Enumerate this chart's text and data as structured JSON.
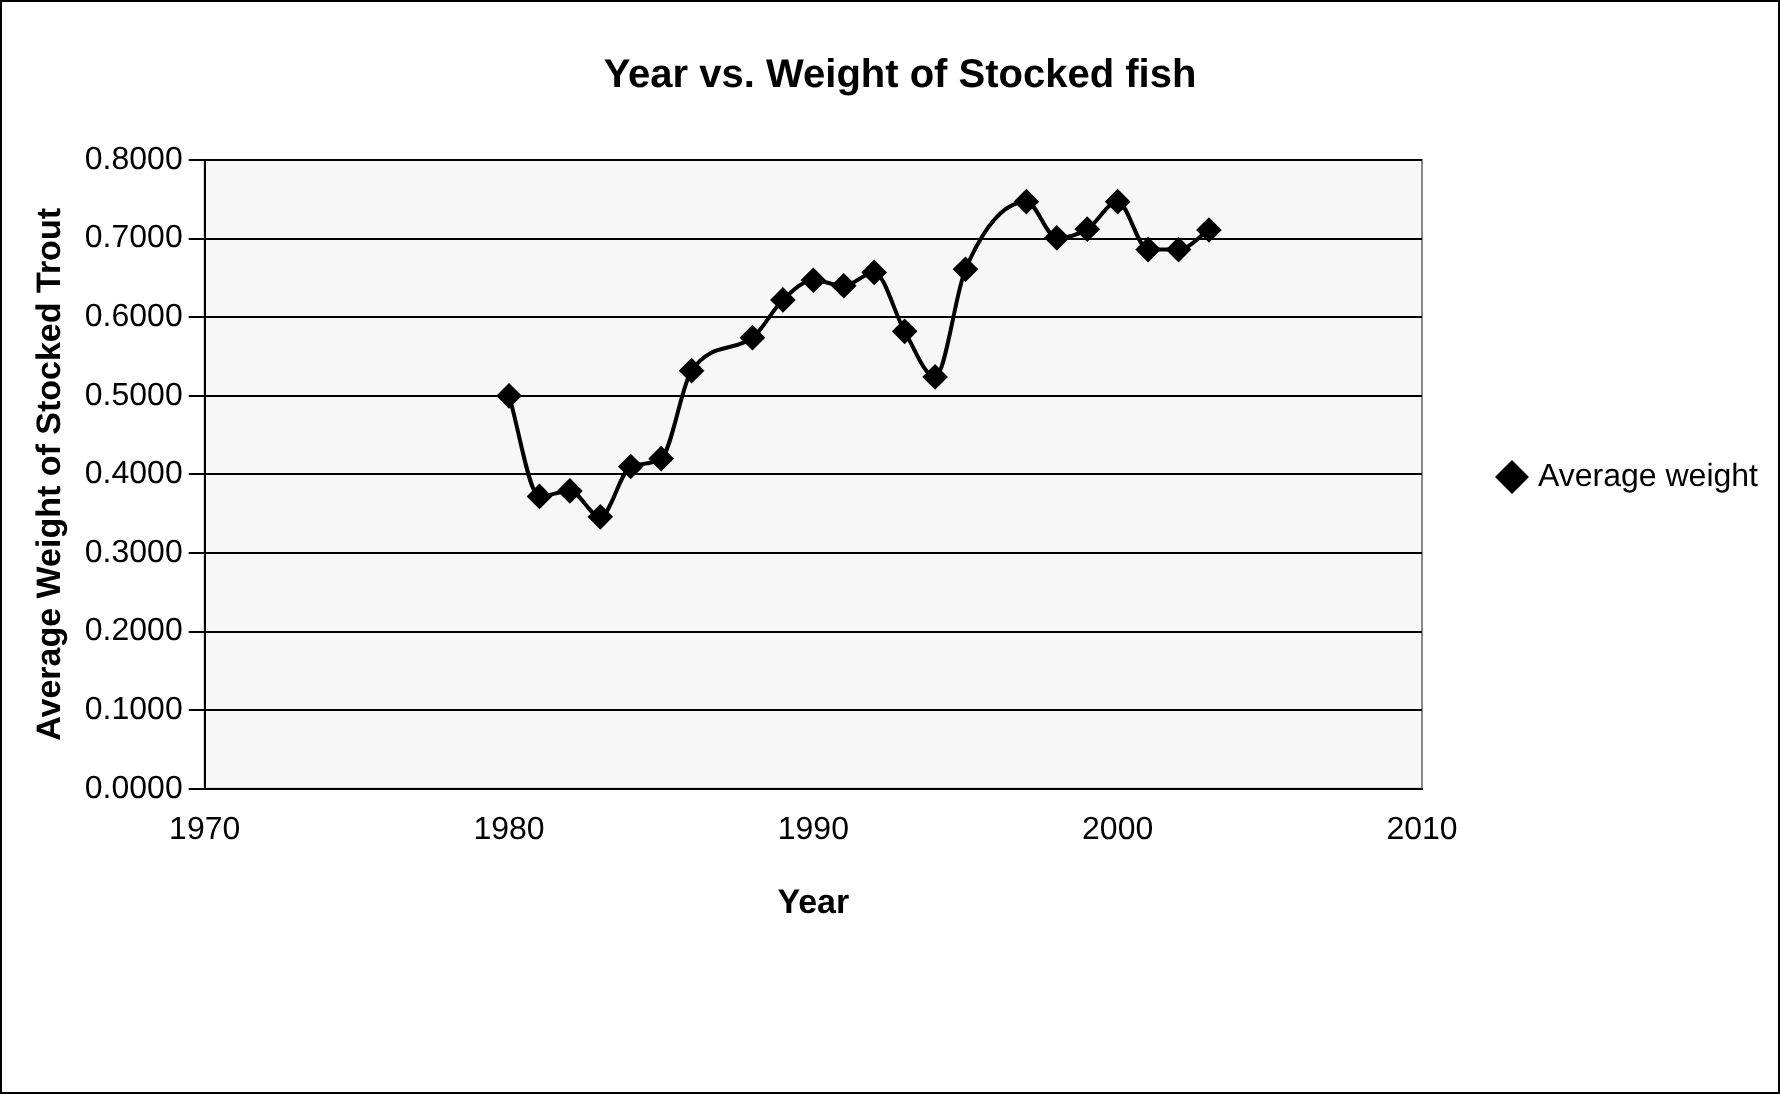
{
  "chart_data": {
    "type": "line",
    "title": "Year vs. Weight of Stocked fish",
    "xlabel": "Year",
    "ylabel": "Average Weight of Stocked Trout",
    "x": [
      1980,
      1981,
      1982,
      1983,
      1984,
      1985,
      1986,
      1988,
      1989,
      1990,
      1991,
      1992,
      1993,
      1994,
      1995,
      1997,
      1998,
      1999,
      2000,
      2001,
      2002,
      2003
    ],
    "series": [
      {
        "name": "Average weight",
        "color": "#000000",
        "values": [
          0.5,
          0.372,
          0.379,
          0.346,
          0.41,
          0.42,
          0.532,
          0.574,
          0.622,
          0.647,
          0.64,
          0.657,
          0.582,
          0.524,
          0.661,
          0.747,
          0.701,
          0.712,
          0.747,
          0.686,
          0.686,
          0.711
        ]
      }
    ],
    "xlim": [
      1970,
      2010
    ],
    "xticks": [
      1970,
      1980,
      1990,
      2000,
      2010
    ],
    "ylim": [
      0,
      0.8
    ],
    "yticks": [
      {
        "value": 0,
        "label": "0.0000"
      },
      {
        "value": 0.1,
        "label": "0.1000"
      },
      {
        "value": 0.2,
        "label": "0.2000"
      },
      {
        "value": 0.3,
        "label": "0.3000"
      },
      {
        "value": 0.4,
        "label": "0.4000"
      },
      {
        "value": 0.5,
        "label": "0.5000"
      },
      {
        "value": 0.6,
        "label": "0.6000"
      },
      {
        "value": 0.7,
        "label": "0.7000"
      },
      {
        "value": 0.8,
        "label": "0.8000"
      }
    ],
    "grid": "y",
    "legend": "right",
    "marker": "diamond",
    "line_style": "solid"
  }
}
